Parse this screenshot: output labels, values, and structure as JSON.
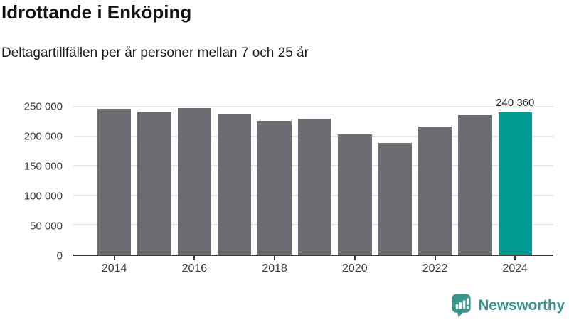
{
  "header": {
    "title": "Idrottande i Enköping",
    "subtitle": "Deltagartillfällen per år personer mellan 7 och 25 år"
  },
  "chart_data": {
    "type": "bar",
    "title": "Idrottande i Enköping",
    "subtitle": "Deltagartillfällen per år personer mellan 7 och 25 år",
    "categories": [
      "2014",
      "2015",
      "2016",
      "2017",
      "2018",
      "2019",
      "2020",
      "2021",
      "2022",
      "2023",
      "2024"
    ],
    "values": [
      247000,
      241500,
      248000,
      238000,
      226000,
      229500,
      203500,
      188500,
      216500,
      235500,
      240360
    ],
    "highlight_index": 10,
    "highlight_label": "240 360",
    "y_ticks": [
      "0",
      "50 000",
      "100 000",
      "150 000",
      "200 000",
      "250 000"
    ],
    "x_tick_labels": [
      "2014",
      "2016",
      "2018",
      "2020",
      "2022",
      "2024"
    ],
    "ylim": [
      0,
      250000
    ],
    "xlabel": "",
    "ylabel": "",
    "grid": "horizontal",
    "legend": "none",
    "colors": {
      "bar": "#6d6c72",
      "highlight": "#009a93",
      "gridline": "#e8e8e8",
      "axis": "#3a3a3a",
      "label_text": "#222222"
    }
  },
  "footer": {
    "brand": "Newsworthy",
    "brand_color": "#3a948e",
    "logo_icon": "bar-chart-speech-bubble-icon"
  }
}
